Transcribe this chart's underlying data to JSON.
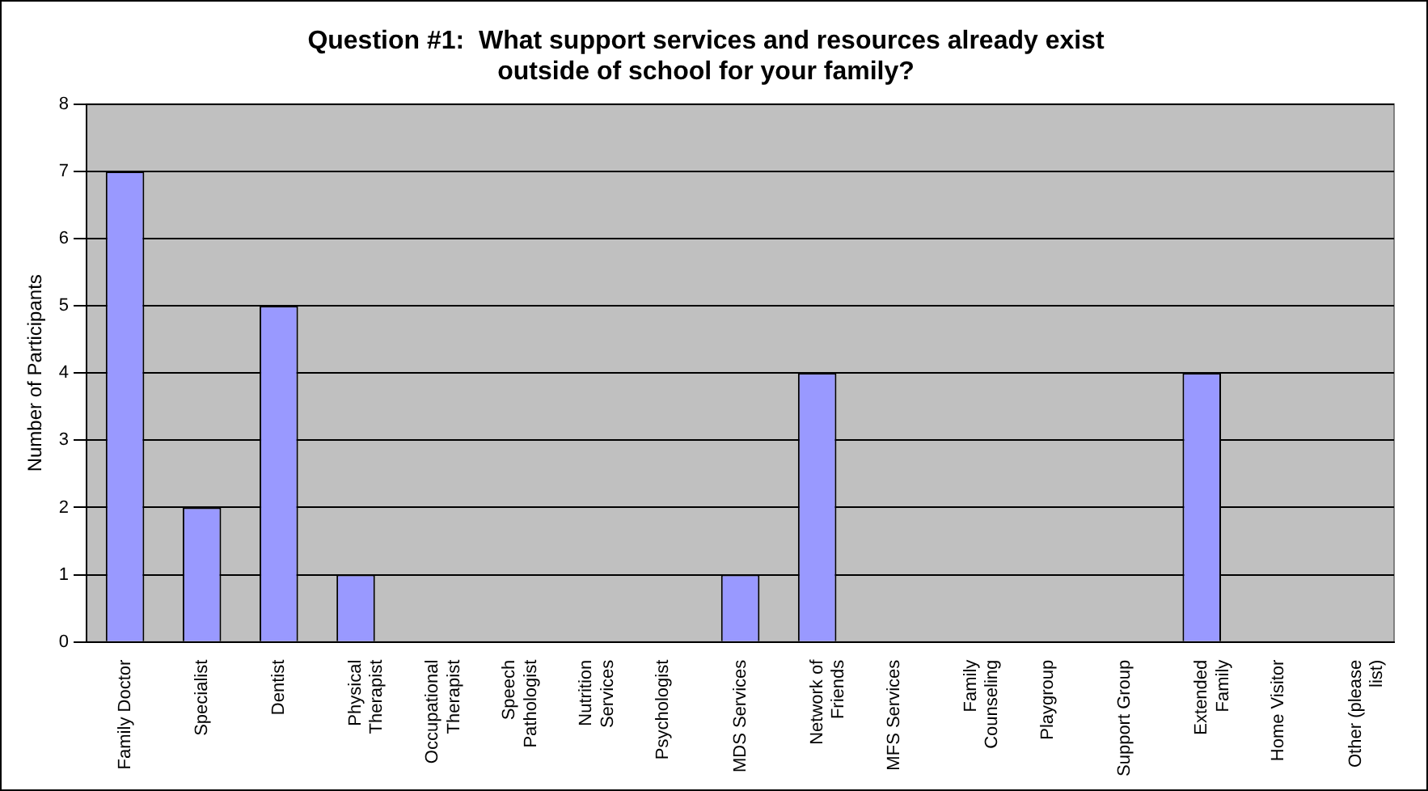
{
  "chart_data": {
    "type": "bar",
    "title": "Question #1:  What support services and resources already exist outside of school for your family?",
    "ylabel": "Number of Participants",
    "categories": [
      "Family Doctor",
      "Specialist",
      "Dentist",
      "Physical Therapist",
      "Occupational Therapist",
      "Speech Pathologist",
      "Nutrition Services",
      "Psychologist",
      "MDS Services",
      "Network of Friends",
      "MFS Services",
      "Family Counseling",
      "Playgroup",
      "Support Group",
      "Extended Family",
      "Home Visitor",
      "Other (please list)"
    ],
    "values": [
      7,
      2,
      5,
      1,
      0,
      0,
      0,
      0,
      1,
      4,
      0,
      0,
      0,
      0,
      4,
      0,
      0
    ],
    "color": "#9999ff",
    "ylim": [
      0,
      8
    ],
    "yticks": [
      0,
      1,
      2,
      3,
      4,
      5,
      6,
      7,
      8
    ],
    "grid": "y",
    "legend": false
  }
}
